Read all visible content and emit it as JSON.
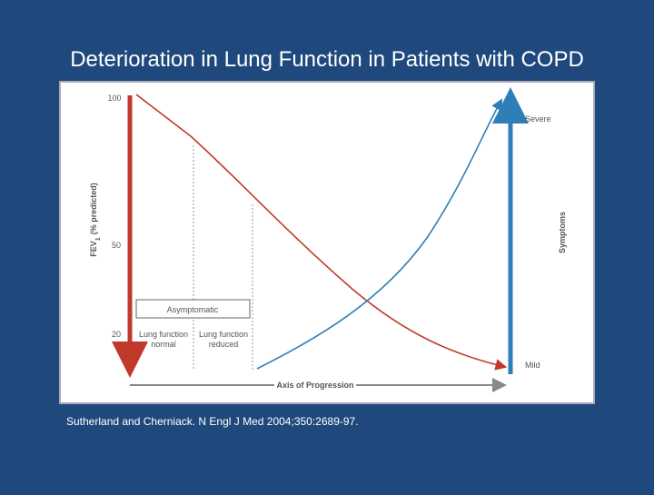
{
  "slide": {
    "title": "Deterioration in Lung Function in Patients with COPD",
    "citation": "Sutherland and Cherniack. N Engl J Med 2004;350:2689-97."
  },
  "figure": {
    "y_axis_label": {
      "main": "FEV",
      "sub": "1",
      "rest": "(% predicted)"
    },
    "y_ticks": [
      "100",
      "50",
      "20"
    ],
    "symptoms_label": "Symptoms",
    "severe": "Severe",
    "mild": "Mild",
    "x_axis_label": "Axis of Progression",
    "asymptomatic": "Asymptomatic",
    "phases": [
      [
        "Lung function",
        "normal"
      ],
      [
        "Lung function",
        "reduced"
      ]
    ]
  }
}
